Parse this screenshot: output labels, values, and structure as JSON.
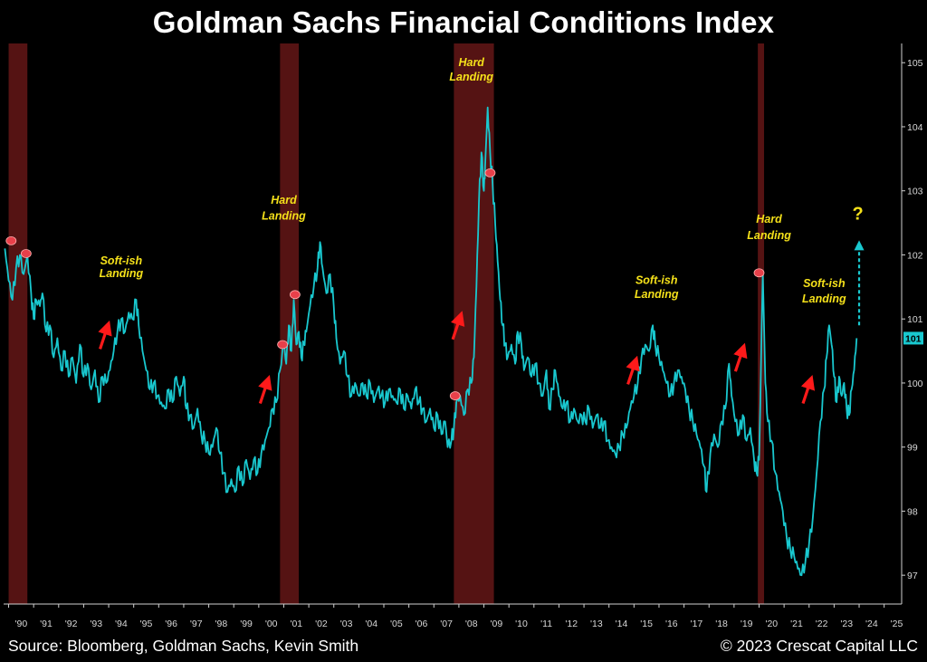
{
  "title": "Goldman Sachs Financial Conditions Index",
  "footer": {
    "source": "Source: Bloomberg, Goldman Sachs, Kevin Smith",
    "copyright": "© 2023 Crescat Capital LLC"
  },
  "colors": {
    "background": "#000000",
    "line": "#19c8cf",
    "recession": "#5a1414",
    "annotation": "#f5e11a",
    "arrow": "#ff1a1a",
    "marker": "#e8404a",
    "projection": "#19c8cf"
  },
  "chart_data": {
    "type": "line",
    "title": "Goldman Sachs Financial Conditions Index",
    "xlabel": "",
    "ylabel": "",
    "x_range": [
      1989.8,
      2025.7
    ],
    "ylim": [
      96.55,
      105.3
    ],
    "y_axis_position": "right",
    "x_tick_labels": [
      "'90",
      "'91",
      "'92",
      "'93",
      "'94",
      "'95",
      "'96",
      "'97",
      "'98",
      "'99",
      "'00",
      "'01",
      "'02",
      "'03",
      "'04",
      "'05",
      "'06",
      "'07",
      "'08",
      "'09",
      "'10",
      "'11",
      "'12",
      "'13",
      "'14",
      "'15",
      "'16",
      "'17",
      "'18",
      "'19",
      "'20",
      "'21",
      "'22",
      "'23",
      "'24",
      "'25"
    ],
    "x_tick_years": [
      1990,
      1991,
      1992,
      1993,
      1994,
      1995,
      1996,
      1997,
      1998,
      1999,
      2000,
      2001,
      2002,
      2003,
      2004,
      2005,
      2006,
      2007,
      2008,
      2009,
      2010,
      2011,
      2012,
      2013,
      2014,
      2015,
      2016,
      2017,
      2018,
      2019,
      2020,
      2021,
      2022,
      2023,
      2024,
      2025
    ],
    "y_ticks": [
      97,
      98,
      99,
      100,
      101,
      102,
      103,
      104,
      105
    ],
    "last_value_label": "101",
    "recessions": [
      {
        "start": 1990.0,
        "end": 1990.75
      },
      {
        "start": 2000.85,
        "end": 2001.6
      },
      {
        "start": 2007.8,
        "end": 2009.4
      },
      {
        "start": 2019.95,
        "end": 2020.2
      }
    ],
    "series": [
      {
        "values": [
          [
            1989.85,
            102.1
          ],
          [
            1990.0,
            101.6
          ],
          [
            1990.15,
            101.3
          ],
          [
            1990.3,
            101.8
          ],
          [
            1990.45,
            102.0
          ],
          [
            1990.6,
            101.7
          ],
          [
            1990.75,
            102.0
          ],
          [
            1990.9,
            101.4
          ],
          [
            1991.0,
            101.0
          ],
          [
            1991.1,
            101.3
          ],
          [
            1991.25,
            101.2
          ],
          [
            1991.35,
            101.4
          ],
          [
            1991.5,
            100.8
          ],
          [
            1991.65,
            100.9
          ],
          [
            1991.8,
            100.4
          ],
          [
            1991.95,
            100.7
          ],
          [
            1992.1,
            100.2
          ],
          [
            1992.25,
            100.5
          ],
          [
            1992.4,
            100.1
          ],
          [
            1992.55,
            100.4
          ],
          [
            1992.7,
            100.0
          ],
          [
            1992.85,
            100.6
          ],
          [
            1993.0,
            100.1
          ],
          [
            1993.15,
            100.3
          ],
          [
            1993.3,
            99.9
          ],
          [
            1993.45,
            100.2
          ],
          [
            1993.6,
            99.7
          ],
          [
            1993.75,
            100.1
          ],
          [
            1993.9,
            100.0
          ],
          [
            1994.05,
            100.2
          ],
          [
            1994.2,
            100.5
          ],
          [
            1994.35,
            100.8
          ],
          [
            1994.5,
            101.0
          ],
          [
            1994.65,
            100.8
          ],
          [
            1994.8,
            101.1
          ],
          [
            1994.95,
            101.0
          ],
          [
            1995.1,
            101.3
          ],
          [
            1995.2,
            100.9
          ],
          [
            1995.35,
            100.5
          ],
          [
            1995.5,
            100.2
          ],
          [
            1995.65,
            99.9
          ],
          [
            1995.8,
            100.0
          ],
          [
            1995.95,
            99.8
          ],
          [
            1996.1,
            99.7
          ],
          [
            1996.25,
            99.6
          ],
          [
            1996.4,
            99.9
          ],
          [
            1996.55,
            99.7
          ],
          [
            1996.7,
            100.1
          ],
          [
            1996.85,
            99.8
          ],
          [
            1997.0,
            100.1
          ],
          [
            1997.1,
            99.6
          ],
          [
            1997.25,
            99.5
          ],
          [
            1997.4,
            99.3
          ],
          [
            1997.55,
            99.6
          ],
          [
            1997.7,
            99.2
          ],
          [
            1997.85,
            99.1
          ],
          [
            1998.0,
            98.9
          ],
          [
            1998.15,
            99.0
          ],
          [
            1998.3,
            99.3
          ],
          [
            1998.45,
            98.9
          ],
          [
            1998.6,
            98.6
          ],
          [
            1998.75,
            98.3
          ],
          [
            1998.9,
            98.5
          ],
          [
            1999.05,
            98.3
          ],
          [
            1999.2,
            98.7
          ],
          [
            1999.35,
            98.4
          ],
          [
            1999.5,
            98.8
          ],
          [
            1999.65,
            98.5
          ],
          [
            1999.8,
            98.8
          ],
          [
            1999.95,
            98.6
          ],
          [
            2000.1,
            98.9
          ],
          [
            2000.25,
            99.1
          ],
          [
            2000.4,
            99.3
          ],
          [
            2000.55,
            99.6
          ],
          [
            2000.7,
            99.7
          ],
          [
            2000.85,
            100.2
          ],
          [
            2001.0,
            100.6
          ],
          [
            2001.1,
            100.3
          ],
          [
            2001.2,
            100.9
          ],
          [
            2001.3,
            100.5
          ],
          [
            2001.4,
            101.3
          ],
          [
            2001.5,
            100.6
          ],
          [
            2001.6,
            100.8
          ],
          [
            2001.7,
            100.4
          ],
          [
            2001.8,
            100.6
          ],
          [
            2001.9,
            100.8
          ],
          [
            2002.05,
            101.2
          ],
          [
            2002.2,
            101.5
          ],
          [
            2002.35,
            101.8
          ],
          [
            2002.45,
            102.2
          ],
          [
            2002.55,
            101.8
          ],
          [
            2002.7,
            101.4
          ],
          [
            2002.85,
            101.7
          ],
          [
            2003.0,
            101.2
          ],
          [
            2003.1,
            100.7
          ],
          [
            2003.25,
            100.3
          ],
          [
            2003.4,
            100.5
          ],
          [
            2003.55,
            100.1
          ],
          [
            2003.7,
            99.8
          ],
          [
            2003.85,
            100.0
          ],
          [
            2004.0,
            99.8
          ],
          [
            2004.15,
            100.0
          ],
          [
            2004.3,
            99.8
          ],
          [
            2004.45,
            100.0
          ],
          [
            2004.6,
            99.7
          ],
          [
            2004.75,
            99.9
          ],
          [
            2004.9,
            99.8
          ],
          [
            2005.05,
            99.7
          ],
          [
            2005.2,
            99.9
          ],
          [
            2005.35,
            99.8
          ],
          [
            2005.5,
            99.7
          ],
          [
            2005.65,
            99.9
          ],
          [
            2005.8,
            99.6
          ],
          [
            2005.95,
            99.8
          ],
          [
            2006.1,
            99.6
          ],
          [
            2006.25,
            99.9
          ],
          [
            2006.4,
            99.7
          ],
          [
            2006.55,
            99.6
          ],
          [
            2006.7,
            99.4
          ],
          [
            2006.85,
            99.6
          ],
          [
            2007.0,
            99.3
          ],
          [
            2007.15,
            99.5
          ],
          [
            2007.3,
            99.2
          ],
          [
            2007.45,
            99.4
          ],
          [
            2007.55,
            99.0
          ],
          [
            2007.7,
            99.1
          ],
          [
            2007.8,
            99.3
          ],
          [
            2007.9,
            99.7
          ],
          [
            2008.05,
            99.8
          ],
          [
            2008.2,
            99.5
          ],
          [
            2008.35,
            99.9
          ],
          [
            2008.5,
            100.0
          ],
          [
            2008.6,
            100.4
          ],
          [
            2008.7,
            101.5
          ],
          [
            2008.8,
            102.8
          ],
          [
            2008.9,
            103.6
          ],
          [
            2009.0,
            103.0
          ],
          [
            2009.05,
            103.4
          ],
          [
            2009.15,
            104.3
          ],
          [
            2009.25,
            103.6
          ],
          [
            2009.35,
            103.1
          ],
          [
            2009.45,
            102.5
          ],
          [
            2009.55,
            101.9
          ],
          [
            2009.65,
            101.3
          ],
          [
            2009.75,
            100.9
          ],
          [
            2009.85,
            100.6
          ],
          [
            2009.95,
            100.4
          ],
          [
            2010.1,
            100.6
          ],
          [
            2010.25,
            100.3
          ],
          [
            2010.35,
            100.8
          ],
          [
            2010.5,
            100.6
          ],
          [
            2010.6,
            100.2
          ],
          [
            2010.75,
            100.4
          ],
          [
            2010.9,
            100.1
          ],
          [
            2011.05,
            100.3
          ],
          [
            2011.2,
            100.0
          ],
          [
            2011.35,
            99.8
          ],
          [
            2011.5,
            100.2
          ],
          [
            2011.6,
            99.6
          ],
          [
            2011.75,
            99.9
          ],
          [
            2011.85,
            100.2
          ],
          [
            2012.0,
            99.8
          ],
          [
            2012.15,
            99.6
          ],
          [
            2012.3,
            99.7
          ],
          [
            2012.45,
            99.4
          ],
          [
            2012.6,
            99.6
          ],
          [
            2012.75,
            99.4
          ],
          [
            2012.9,
            99.5
          ],
          [
            2013.05,
            99.4
          ],
          [
            2013.2,
            99.6
          ],
          [
            2013.35,
            99.3
          ],
          [
            2013.5,
            99.5
          ],
          [
            2013.65,
            99.3
          ],
          [
            2013.8,
            99.4
          ],
          [
            2013.95,
            99.1
          ],
          [
            2014.1,
            99.0
          ],
          [
            2014.25,
            98.9
          ],
          [
            2014.4,
            99.0
          ],
          [
            2014.55,
            99.2
          ],
          [
            2014.7,
            99.3
          ],
          [
            2014.85,
            99.6
          ],
          [
            2015.0,
            99.8
          ],
          [
            2015.15,
            100.0
          ],
          [
            2015.3,
            100.4
          ],
          [
            2015.45,
            100.6
          ],
          [
            2015.6,
            100.5
          ],
          [
            2015.75,
            100.9
          ],
          [
            2015.85,
            100.6
          ],
          [
            2016.0,
            100.4
          ],
          [
            2016.15,
            100.2
          ],
          [
            2016.3,
            100.0
          ],
          [
            2016.45,
            99.8
          ],
          [
            2016.6,
            100.0
          ],
          [
            2016.75,
            100.2
          ],
          [
            2016.9,
            100.1
          ],
          [
            2017.05,
            99.9
          ],
          [
            2017.2,
            99.6
          ],
          [
            2017.35,
            99.4
          ],
          [
            2017.5,
            99.2
          ],
          [
            2017.65,
            99.0
          ],
          [
            2017.8,
            98.7
          ],
          [
            2017.9,
            98.3
          ],
          [
            2018.05,
            98.9
          ],
          [
            2018.2,
            99.2
          ],
          [
            2018.35,
            99.0
          ],
          [
            2018.5,
            99.4
          ],
          [
            2018.65,
            99.6
          ],
          [
            2018.8,
            100.3
          ],
          [
            2018.9,
            99.8
          ],
          [
            2019.05,
            99.4
          ],
          [
            2019.2,
            99.2
          ],
          [
            2019.35,
            99.5
          ],
          [
            2019.5,
            99.1
          ],
          [
            2019.65,
            99.3
          ],
          [
            2019.8,
            98.8
          ],
          [
            2019.9,
            98.6
          ],
          [
            2020.0,
            98.8
          ],
          [
            2020.15,
            101.7
          ],
          [
            2020.25,
            100.0
          ],
          [
            2020.35,
            99.4
          ],
          [
            2020.5,
            99.1
          ],
          [
            2020.65,
            98.6
          ],
          [
            2020.8,
            98.3
          ],
          [
            2020.95,
            98.0
          ],
          [
            2021.1,
            97.6
          ],
          [
            2021.25,
            97.4
          ],
          [
            2021.4,
            97.3
          ],
          [
            2021.55,
            97.1
          ],
          [
            2021.7,
            97.0
          ],
          [
            2021.85,
            97.2
          ],
          [
            2022.0,
            97.5
          ],
          [
            2022.15,
            97.9
          ],
          [
            2022.3,
            98.6
          ],
          [
            2022.45,
            99.4
          ],
          [
            2022.6,
            99.9
          ],
          [
            2022.7,
            100.4
          ],
          [
            2022.8,
            100.9
          ],
          [
            2022.9,
            100.6
          ],
          [
            2023.0,
            100.1
          ],
          [
            2023.1,
            99.7
          ],
          [
            2023.2,
            100.1
          ],
          [
            2023.3,
            99.8
          ],
          [
            2023.4,
            100.0
          ],
          [
            2023.5,
            99.6
          ],
          [
            2023.6,
            99.5
          ],
          [
            2023.7,
            99.9
          ],
          [
            2023.8,
            100.2
          ],
          [
            2023.9,
            100.7
          ]
        ]
      }
    ],
    "annotations": [
      {
        "text": "Soft-ish",
        "x": 1994.5,
        "y": 101.85
      },
      {
        "text": "Landing",
        "x": 1994.5,
        "y": 101.65
      },
      {
        "text": "Hard",
        "x": 2001.0,
        "y": 102.8
      },
      {
        "text": "Landing",
        "x": 2001.0,
        "y": 102.55
      },
      {
        "text": "Hard",
        "x": 2008.5,
        "y": 104.95
      },
      {
        "text": "Landing",
        "x": 2008.5,
        "y": 104.72
      },
      {
        "text": "Soft-ish",
        "x": 2015.9,
        "y": 101.55
      },
      {
        "text": "Landing",
        "x": 2015.9,
        "y": 101.33
      },
      {
        "text": "Hard",
        "x": 2020.4,
        "y": 102.5
      },
      {
        "text": "Landing",
        "x": 2020.4,
        "y": 102.25
      },
      {
        "text": "Soft-ish",
        "x": 2022.6,
        "y": 101.5
      },
      {
        "text": "Landing",
        "x": 2022.6,
        "y": 101.26
      }
    ],
    "question_mark": {
      "text": "?",
      "x": 2023.95,
      "y": 102.55
    },
    "arrows_up": [
      {
        "x": 1993.8,
        "y": 100.7
      },
      {
        "x": 2000.2,
        "y": 99.85
      },
      {
        "x": 2007.9,
        "y": 100.85
      },
      {
        "x": 2014.9,
        "y": 100.15
      },
      {
        "x": 2019.2,
        "y": 100.35
      },
      {
        "x": 2021.9,
        "y": 99.85
      }
    ],
    "markers": [
      {
        "x": 1990.1,
        "y": 102.22
      },
      {
        "x": 1990.7,
        "y": 102.02
      },
      {
        "x": 2000.95,
        "y": 100.6
      },
      {
        "x": 2001.45,
        "y": 101.38
      },
      {
        "x": 2007.85,
        "y": 99.8
      },
      {
        "x": 2009.25,
        "y": 103.28
      },
      {
        "x": 2020.0,
        "y": 101.72
      }
    ],
    "projection": {
      "from": [
        2024.0,
        100.9
      ],
      "to": [
        2024.0,
        102.15
      ]
    }
  }
}
